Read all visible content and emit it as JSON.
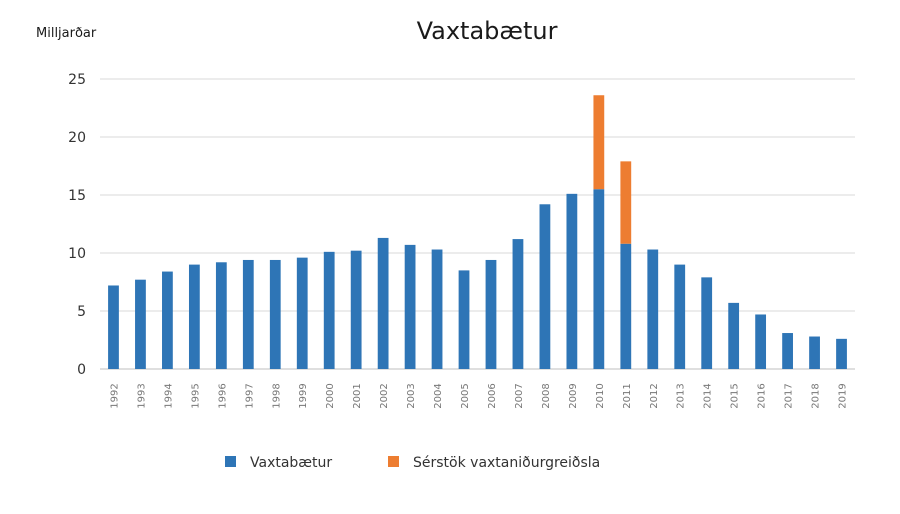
{
  "chart_data": {
    "type": "bar",
    "stacked": true,
    "title": "Vaxtabætur",
    "ylabel": "Milljarðar",
    "xlabel": "",
    "ylim": [
      0,
      25
    ],
    "yticks": [
      0,
      5,
      10,
      15,
      20,
      25
    ],
    "grid": true,
    "legend_position": "bottom",
    "categories": [
      "1992",
      "1993",
      "1994",
      "1995",
      "1996",
      "1997",
      "1998",
      "1999",
      "2000",
      "2001",
      "2002",
      "2003",
      "2004",
      "2005",
      "2006",
      "2007",
      "2008",
      "2009",
      "2010",
      "2011",
      "2012",
      "2013",
      "2014",
      "2015",
      "2016",
      "2017",
      "2018",
      "2019"
    ],
    "series": [
      {
        "name": "Vaxtabætur",
        "color": "#2e75b6",
        "values": [
          7.2,
          7.7,
          8.4,
          9.0,
          9.2,
          9.4,
          9.4,
          9.6,
          10.1,
          10.2,
          11.3,
          10.7,
          10.3,
          8.5,
          9.4,
          11.2,
          14.2,
          15.1,
          15.5,
          10.8,
          10.3,
          9.0,
          7.9,
          5.7,
          4.7,
          3.1,
          2.8,
          2.6
        ]
      },
      {
        "name": "Sérstök vaxtaniðurgreiðsla",
        "color": "#ed7d31",
        "values": [
          0,
          0,
          0,
          0,
          0,
          0,
          0,
          0,
          0,
          0,
          0,
          0,
          0,
          0,
          0,
          0,
          0,
          0,
          8.1,
          7.1,
          0,
          0,
          0,
          0,
          0,
          0,
          0,
          0
        ]
      }
    ]
  }
}
